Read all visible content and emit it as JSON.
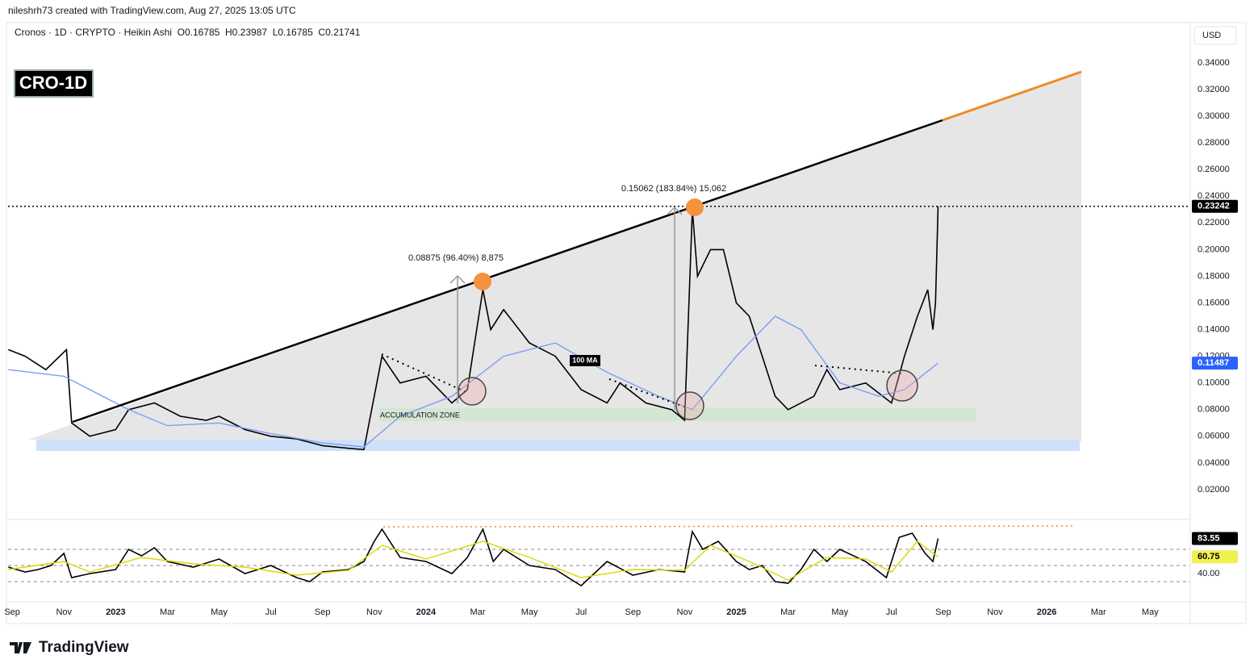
{
  "header": {
    "credit": "nileshrh73 created with TradingView.com, Aug 27, 2025 13:05 UTC",
    "symbol": "Cronos · 1D · CRYPTO · Heikin Ashi  O0.16785  H0.23987  L0.16785  C0.21741",
    "currency": "USD",
    "badge": "CRO-1D",
    "brand": "TradingView"
  },
  "chart_data": [
    {
      "type": "line",
      "annotations": {
        "move1": "0.08875 (96.40%) 8,875",
        "move2": "0.15062 (183.84%) 15,062",
        "ma_label": "100 MA",
        "zone": "ACCUMULATION ZONE"
      },
      "xlim": [
        -0.16,
        45.55
      ],
      "xticks": [
        {
          "value": 0,
          "label": "Sep"
        },
        {
          "value": 2,
          "label": "Nov"
        },
        {
          "value": 4,
          "label": "2023"
        },
        {
          "value": 6,
          "label": "Mar"
        },
        {
          "value": 8,
          "label": "May"
        },
        {
          "value": 10,
          "label": "Jul"
        },
        {
          "value": 12,
          "label": "Sep"
        },
        {
          "value": 14,
          "label": "Nov"
        },
        {
          "value": 16,
          "label": "2024"
        },
        {
          "value": 18,
          "label": "Mar"
        },
        {
          "value": 20,
          "label": "May"
        },
        {
          "value": 22,
          "label": "Jul"
        },
        {
          "value": 24,
          "label": "Sep"
        },
        {
          "value": 26,
          "label": "Nov"
        },
        {
          "value": 28,
          "label": "2025"
        },
        {
          "value": 30,
          "label": "Mar"
        },
        {
          "value": 32,
          "label": "May"
        },
        {
          "value": 34,
          "label": "Jul"
        },
        {
          "value": 36,
          "label": "Sep"
        },
        {
          "value": 38,
          "label": "Nov"
        },
        {
          "value": 40,
          "label": "2026"
        },
        {
          "value": 42,
          "label": "Mar"
        },
        {
          "value": 44,
          "label": "May"
        }
      ],
      "ylim": [
        0.0,
        0.369
      ],
      "yticks": [
        {
          "value": 0.02,
          "label": "0.02000"
        },
        {
          "value": 0.04,
          "label": "0.04000"
        },
        {
          "value": 0.06,
          "label": "0.06000"
        },
        {
          "value": 0.08,
          "label": "0.08000"
        },
        {
          "value": 0.1,
          "label": "0.10000"
        },
        {
          "value": 0.12,
          "label": "0.12000"
        },
        {
          "value": 0.14,
          "label": "0.14000"
        },
        {
          "value": 0.16,
          "label": "0.16000"
        },
        {
          "value": 0.18,
          "label": "0.18000"
        },
        {
          "value": 0.2,
          "label": "0.20000"
        },
        {
          "value": 0.22,
          "label": "0.22000"
        },
        {
          "value": 0.24,
          "label": "0.24000"
        },
        {
          "value": 0.26,
          "label": "0.26000"
        },
        {
          "value": 0.28,
          "label": "0.28000"
        },
        {
          "value": 0.3,
          "label": "0.30000"
        },
        {
          "value": 0.32,
          "label": "0.32000"
        },
        {
          "value": 0.34,
          "label": "0.34000"
        }
      ],
      "grid": false,
      "series": [
        {
          "color": "#000000",
          "pill": "#000000",
          "x": [
            -0.15,
            0.5,
            1.3,
            2.1,
            2.3,
            3,
            4,
            4.5,
            5.5,
            6.5,
            7.5,
            8,
            9,
            10,
            11,
            12,
            13,
            13.6,
            14,
            14.3,
            15,
            16,
            17,
            17.6,
            18.2,
            18.5,
            19,
            20,
            21,
            22,
            23,
            23.5,
            24.5,
            25.5,
            26,
            26.3,
            26.5,
            27,
            27.5,
            28,
            28.5,
            29,
            29.5,
            30,
            31,
            31.5,
            32,
            33,
            34,
            34.5,
            35,
            35.4,
            35.6,
            35.7,
            35.8
          ],
          "values": [
            0.125,
            0.12,
            0.11,
            0.125,
            0.07,
            0.06,
            0.065,
            0.08,
            0.085,
            0.075,
            0.072,
            0.075,
            0.065,
            0.06,
            0.058,
            0.053,
            0.051,
            0.05,
            0.09,
            0.12,
            0.1,
            0.105,
            0.085,
            0.095,
            0.17,
            0.14,
            0.155,
            0.13,
            0.12,
            0.095,
            0.085,
            0.1,
            0.085,
            0.08,
            0.072,
            0.23,
            0.18,
            0.2,
            0.2,
            0.16,
            0.15,
            0.12,
            0.09,
            0.08,
            0.09,
            0.11,
            0.095,
            0.1,
            0.085,
            0.12,
            0.15,
            0.17,
            0.14,
            0.16,
            0.23242
          ]
        },
        {
          "color": "#7b9ff0",
          "pill": "#2962ff",
          "x": [
            -0.15,
            2,
            4.5,
            6,
            8,
            10,
            12,
            13.6,
            15,
            17,
            19,
            21,
            23,
            25,
            26.3,
            28,
            29.5,
            30.5,
            32,
            33.5,
            34.5,
            35.8
          ],
          "values": [
            0.11,
            0.105,
            0.08,
            0.068,
            0.07,
            0.062,
            0.055,
            0.052,
            0.075,
            0.09,
            0.12,
            0.13,
            0.108,
            0.09,
            0.08,
            0.12,
            0.15,
            0.14,
            0.1,
            0.09,
            0.095,
            0.11487
          ]
        }
      ]
    },
    {
      "type": "line",
      "ylim": [
        6,
        102
      ],
      "yticks": [
        {
          "value": 40,
          "label": "40.00"
        }
      ],
      "levels": [
        70,
        50,
        30
      ],
      "series": [
        {
          "color": "#000000",
          "pill": "#000000",
          "x": [
            -0.15,
            0.5,
            1,
            1.5,
            2,
            2.3,
            3,
            4,
            4.5,
            5,
            5.5,
            6,
            7,
            8,
            9,
            10,
            11,
            11.5,
            12,
            13,
            13.6,
            14,
            14.3,
            15,
            16,
            17,
            17.6,
            18.2,
            18.6,
            19,
            20,
            21,
            22,
            23,
            24,
            25,
            26,
            26.3,
            26.7,
            27.3,
            28,
            28.5,
            29,
            29.5,
            30,
            30.5,
            31,
            31.5,
            32,
            33,
            33.8,
            34.3,
            34.8,
            35.3,
            35.6,
            35.8
          ],
          "values": [
            48,
            42,
            45,
            50,
            65,
            35,
            40,
            45,
            70,
            62,
            72,
            55,
            48,
            58,
            40,
            50,
            35,
            30,
            42,
            45,
            55,
            80,
            95,
            60,
            55,
            40,
            60,
            95,
            55,
            70,
            50,
            45,
            25,
            55,
            38,
            45,
            42,
            92,
            70,
            80,
            55,
            45,
            50,
            30,
            28,
            45,
            70,
            55,
            70,
            55,
            35,
            85,
            90,
            65,
            55,
            83.55
          ]
        },
        {
          "color": "#d8d800",
          "pill": "#f0f050",
          "x": [
            -0.15,
            2,
            3,
            5,
            7,
            9,
            11,
            13,
            14.3,
            16,
            18.2,
            20,
            22,
            24,
            26,
            27,
            28.5,
            30,
            31.5,
            33,
            34,
            35,
            35.8
          ],
          "values": [
            45,
            55,
            42,
            60,
            52,
            48,
            38,
            44,
            75,
            58,
            80,
            60,
            35,
            45,
            44,
            75,
            55,
            32,
            60,
            58,
            42,
            80,
            60.75
          ]
        }
      ]
    }
  ]
}
